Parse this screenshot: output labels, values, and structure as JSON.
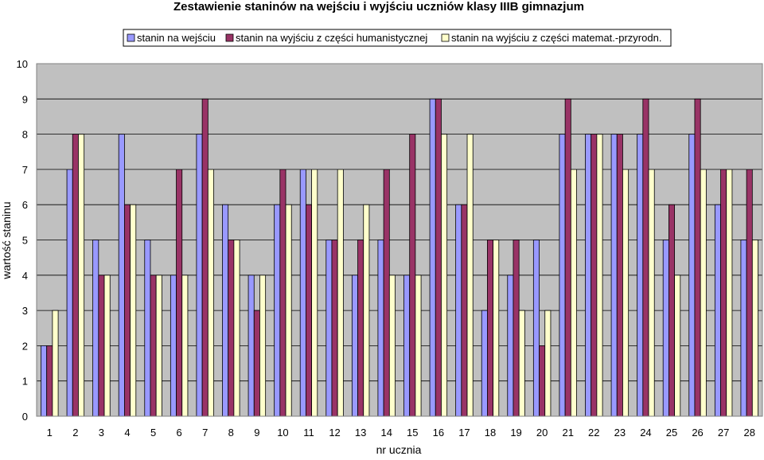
{
  "chart_data": {
    "type": "bar",
    "title": "Zestawienie staninów na wejściu i wyjściu uczniów klasy IIIB gimnazjum",
    "xlabel": "nr ucznia",
    "ylabel": "wartość staninu",
    "ylim": [
      0,
      10
    ],
    "yticks": [
      "0",
      "1",
      "2",
      "3",
      "4",
      "5",
      "6",
      "7",
      "8",
      "9",
      "10"
    ],
    "grid": true,
    "legend_position": "top",
    "categories": [
      "1",
      "2",
      "3",
      "4",
      "5",
      "6",
      "7",
      "8",
      "9",
      "10",
      "11",
      "12",
      "13",
      "14",
      "15",
      "16",
      "17",
      "18",
      "19",
      "20",
      "21",
      "22",
      "23",
      "24",
      "25",
      "26",
      "27",
      "28"
    ],
    "series": [
      {
        "name": "stanin na wejściu",
        "color": "#9999FF",
        "values": [
          2,
          7,
          5,
          8,
          5,
          4,
          8,
          6,
          4,
          6,
          7,
          5,
          4,
          5,
          4,
          9,
          6,
          3,
          4,
          5,
          8,
          8,
          8,
          8,
          5,
          8,
          6,
          5
        ]
      },
      {
        "name": "stanin na wyjściu z części humanistycznej",
        "color": "#993366",
        "values": [
          2,
          8,
          4,
          6,
          4,
          7,
          9,
          5,
          3,
          7,
          6,
          5,
          5,
          7,
          8,
          9,
          6,
          5,
          5,
          2,
          9,
          8,
          8,
          9,
          6,
          9,
          7,
          7
        ]
      },
      {
        "name": "stanin na wyjściu z części matemat.-przyrodn.",
        "color": "#FFFFCC",
        "values": [
          3,
          8,
          4,
          6,
          4,
          4,
          7,
          5,
          4,
          6,
          7,
          7,
          6,
          4,
          4,
          8,
          8,
          5,
          3,
          3,
          7,
          8,
          7,
          7,
          4,
          7,
          7,
          5
        ]
      }
    ]
  }
}
